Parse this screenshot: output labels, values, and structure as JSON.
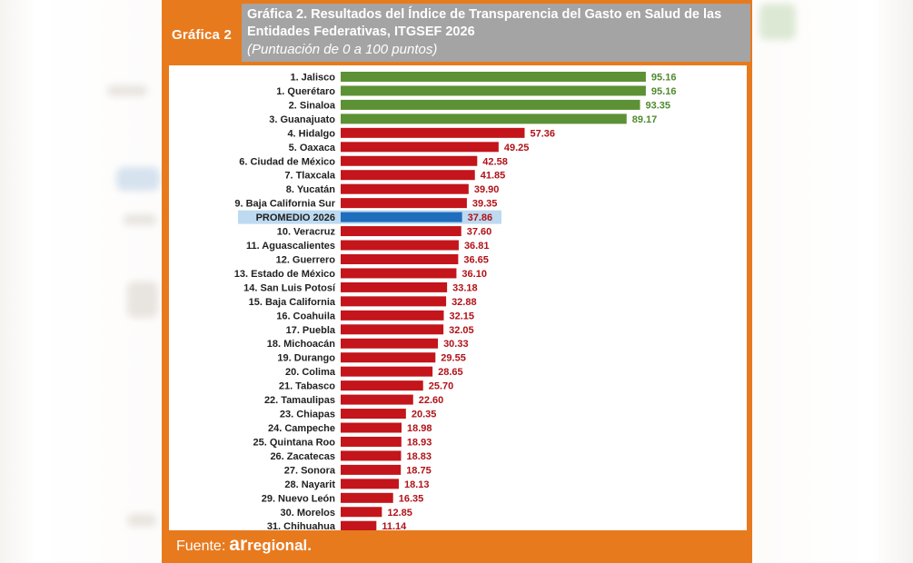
{
  "header": {
    "badge": "Gráfica 2",
    "title_line1": "Gráfica 2. Resultados del Índice de Transparencia del Gasto en Salud de las",
    "title_line2": "Entidades Federativas, ITGSEF 2026",
    "subtitle": "(Puntuación de 0 a 100 puntos)"
  },
  "footer": {
    "prefix": "Fuente:",
    "brand_bold": "ar",
    "brand_rest": "regional."
  },
  "colors": {
    "top": "#5d9135",
    "rest": "#c3151b",
    "average": "#1f6dbd",
    "average_highlight": "#bddaf0",
    "value_top": "#4f8a2f",
    "value_rest": "#b01218",
    "frame": "#e87a1e"
  },
  "chart_data": {
    "type": "bar",
    "orientation": "horizontal",
    "xlim": [
      0,
      100
    ],
    "categories": [
      "1. Jalisco",
      "1. Querétaro",
      "2. Sinaloa",
      "3. Guanajuato",
      "4. Hidalgo",
      "5. Oaxaca",
      "6. Ciudad de México",
      "7. Tlaxcala",
      "8. Yucatán",
      "9. Baja California Sur",
      "PROMEDIO 2026",
      "10. Veracruz",
      "11. Aguascalientes",
      "12. Guerrero",
      "13. Estado de México",
      "14. San Luis Potosí",
      "15. Baja California",
      "16. Coahuila",
      "17. Puebla",
      "18. Michoacán",
      "19. Durango",
      "20. Colima",
      "21. Tabasco",
      "22. Tamaulipas",
      "23. Chiapas",
      "24. Campeche",
      "25. Quintana Roo",
      "26. Zacatecas",
      "27. Sonora",
      "28. Nayarit",
      "29. Nuevo León",
      "30. Morelos",
      "31. Chihuahua"
    ],
    "values": [
      95.16,
      95.16,
      93.35,
      89.17,
      57.36,
      49.25,
      42.58,
      41.85,
      39.9,
      39.35,
      37.86,
      37.6,
      36.81,
      36.65,
      36.1,
      33.18,
      32.88,
      32.15,
      32.05,
      30.33,
      29.55,
      28.65,
      25.7,
      22.6,
      20.35,
      18.98,
      18.93,
      18.83,
      18.75,
      18.13,
      16.35,
      12.85,
      11.14
    ],
    "value_labels": [
      "95.16",
      "95.16",
      "93.35",
      "89.17",
      "57.36",
      "49.25",
      "42.58",
      "41.85",
      "39.90",
      "39.35",
      "37.86",
      "37.60",
      "36.81",
      "36.65",
      "36.10",
      "33.18",
      "32.88",
      "32.15",
      "32.05",
      "30.33",
      "29.55",
      "28.65",
      "25.70",
      "22.60",
      "20.35",
      "18.98",
      "18.93",
      "18.83",
      "18.75",
      "18.13",
      "16.35",
      "12.85",
      "11.14"
    ],
    "groups": [
      "top",
      "top",
      "top",
      "top",
      "rest",
      "rest",
      "rest",
      "rest",
      "rest",
      "rest",
      "average",
      "rest",
      "rest",
      "rest",
      "rest",
      "rest",
      "rest",
      "rest",
      "rest",
      "rest",
      "rest",
      "rest",
      "rest",
      "rest",
      "rest",
      "rest",
      "rest",
      "rest",
      "rest",
      "rest",
      "rest",
      "rest",
      "rest"
    ]
  }
}
